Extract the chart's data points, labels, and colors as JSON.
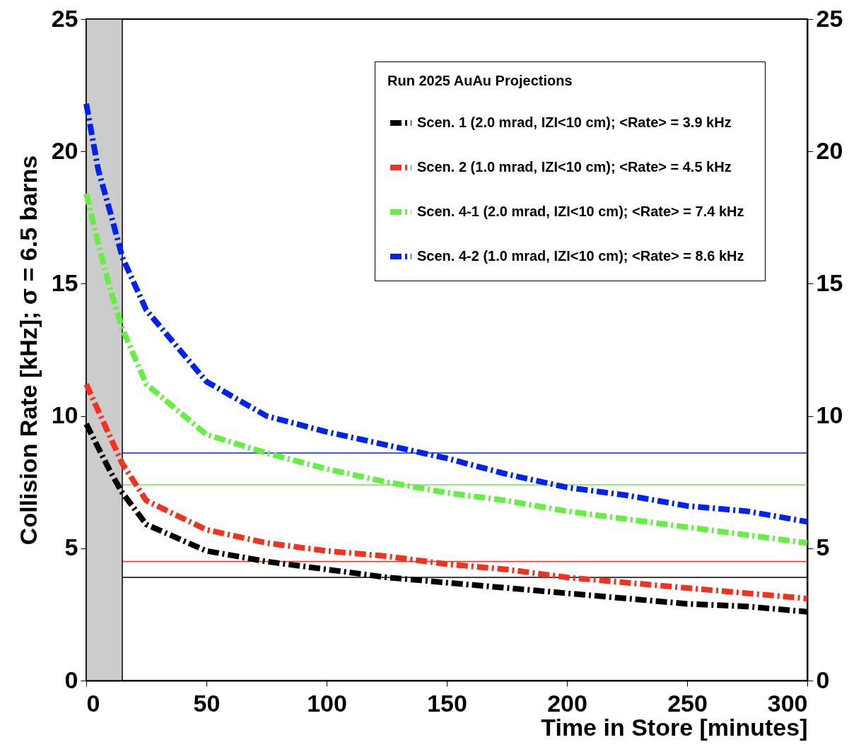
{
  "chart_data": {
    "type": "line",
    "xlabel": "Time in Store [minutes]",
    "ylabel": "Collision Rate [kHz];    σ = 6.5 barns",
    "legend_title": "Run 2025 AuAu Projections",
    "legend": "top right",
    "line_style": "dashed",
    "grid": false,
    "x": [
      0,
      5,
      10,
      15,
      25,
      50,
      75,
      100,
      125,
      150,
      175,
      200,
      225,
      250,
      275,
      300
    ],
    "series": [
      {
        "name": "Scen. 1   (2.0 mrad, IZI<10 cm); <Rate> = 3.9 kHz",
        "color": "#000000",
        "values": [
          9.7,
          8.8,
          7.9,
          7.1,
          5.9,
          4.9,
          4.5,
          4.2,
          3.9,
          3.7,
          3.5,
          3.3,
          3.1,
          2.9,
          2.8,
          2.6
        ]
      },
      {
        "name": "Scen. 2   (1.0 mrad, IZI<10 cm); <Rate> = 4.5 kHz",
        "color": "#ee3322",
        "values": [
          11.2,
          10.2,
          9.2,
          8.2,
          6.8,
          5.7,
          5.2,
          4.9,
          4.7,
          4.4,
          4.2,
          3.9,
          3.7,
          3.5,
          3.3,
          3.1
        ]
      },
      {
        "name": "Scen. 4-1   (2.0 mrad, IZI<10 cm); <Rate> = 7.4 kHz",
        "color": "#66ee44",
        "values": [
          18.4,
          16.5,
          14.8,
          13.3,
          11.2,
          9.3,
          8.6,
          8.0,
          7.5,
          7.1,
          6.8,
          6.4,
          6.1,
          5.8,
          5.5,
          5.2
        ]
      },
      {
        "name": "Scen. 4-2   (1.0 mrad, IZI<10 cm); <Rate> = 8.6 kHz",
        "color": "#0022ee",
        "values": [
          21.8,
          19.3,
          17.7,
          16.0,
          14.0,
          11.3,
          10.0,
          9.4,
          8.9,
          8.4,
          7.8,
          7.3,
          7.0,
          6.6,
          6.4,
          6.0
        ]
      }
    ],
    "xlim": [
      0,
      300
    ],
    "xticks": [
      0,
      50,
      100,
      150,
      200,
      250,
      300
    ],
    "ylim": [
      0,
      25
    ],
    "yticks": [
      0,
      5,
      10,
      15,
      20,
      25
    ],
    "y2lim": [
      0,
      25
    ],
    "y2ticks": [
      0,
      5,
      10,
      15,
      20,
      25
    ],
    "ref_lines": [
      {
        "axis": "y",
        "value": 3.9,
        "color": "#000000"
      },
      {
        "axis": "y",
        "value": 4.5,
        "color": "#ee3322"
      },
      {
        "axis": "y",
        "value": 7.4,
        "color": "#66ee44"
      },
      {
        "axis": "y",
        "value": 8.6,
        "color": "#0022ee"
      }
    ],
    "bands": [
      {
        "axis": "x",
        "from": 0,
        "to": 15,
        "color": "#cccccc"
      }
    ]
  }
}
